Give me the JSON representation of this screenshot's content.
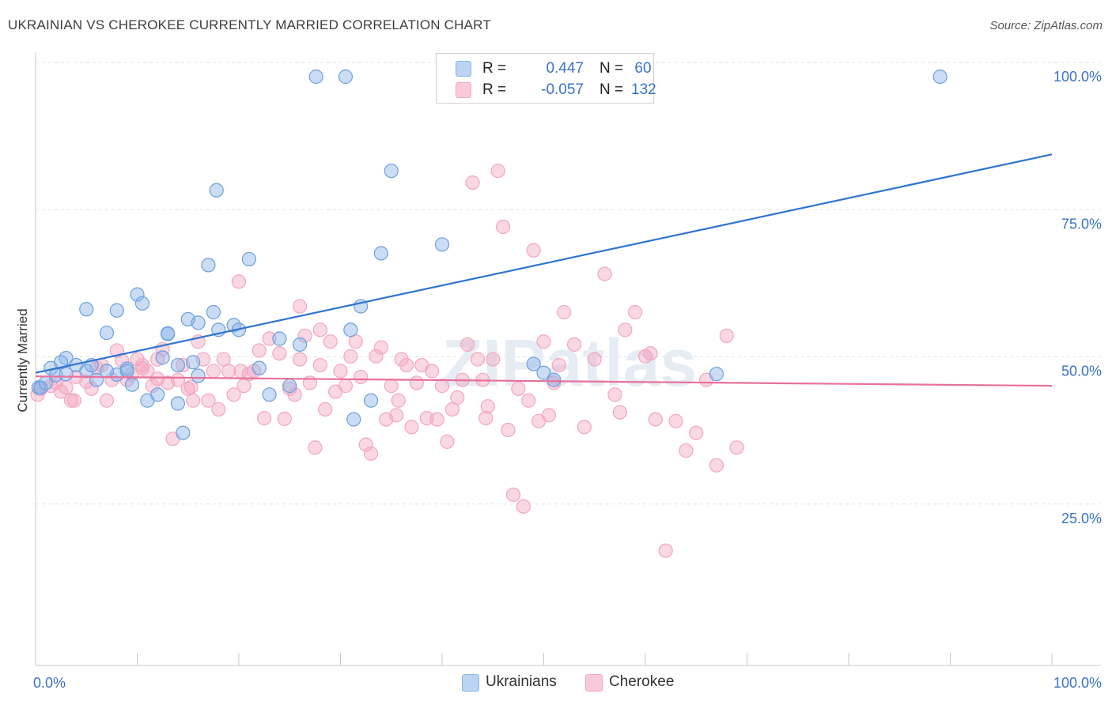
{
  "title": "UKRAINIAN VS CHEROKEE CURRENTLY MARRIED CORRELATION CHART",
  "source": "Source: ZipAtlas.com",
  "watermark": "ZIPatlas",
  "legend": {
    "rows": [
      {
        "r_label": "R =",
        "r_value": "0.447",
        "n_label": "N =",
        "n_value": "60"
      },
      {
        "r_label": "R =",
        "r_value": "-0.057",
        "n_label": "N =",
        "n_value": "132"
      }
    ]
  },
  "bottom_legend": {
    "ukrainians": "Ukrainians",
    "cherokee": "Cherokee"
  },
  "chart_data": {
    "type": "scatter",
    "title": "UKRAINIAN VS CHEROKEE CURRENTLY MARRIED CORRELATION CHART",
    "xlabel": "",
    "ylabel": "Currently Married",
    "x_tick_labels": {
      "left": "0.0%",
      "right": "100.0%"
    },
    "y_tick_labels": [
      "100.0%",
      "75.0%",
      "50.0%",
      "25.0%"
    ],
    "y_ticks": [
      100,
      75,
      50,
      25
    ],
    "xlim": [
      0,
      100
    ],
    "ylim": [
      0,
      100
    ],
    "grid": true,
    "colors": {
      "ukrainians": "#8ab4e8",
      "cherokee": "#f2a7c0",
      "ukr_line": "#2f74d0",
      "cher_line": "#e8709a",
      "tick_text": "#3a72c8"
    },
    "series": [
      {
        "name": "Ukrainians",
        "trend": {
          "x0": 0,
          "y0": 49.7,
          "x1": 100,
          "y1": 86.8
        },
        "points": [
          [
            0.3,
            47.2
          ],
          [
            0.5,
            47.2
          ],
          [
            1.5,
            50.5
          ],
          [
            2,
            49.3
          ],
          [
            3,
            52.2
          ],
          [
            4,
            51
          ],
          [
            5,
            60.5
          ],
          [
            5,
            50
          ],
          [
            7,
            56.5
          ],
          [
            8,
            60.3
          ],
          [
            8,
            49.4
          ],
          [
            9,
            50.4
          ],
          [
            9.5,
            47.7
          ],
          [
            10,
            63
          ],
          [
            10.5,
            61.5
          ],
          [
            11,
            45
          ],
          [
            12,
            46
          ],
          [
            12.5,
            52.3
          ],
          [
            13,
            56.3
          ],
          [
            13,
            56.4
          ],
          [
            14,
            44.5
          ],
          [
            14,
            51
          ],
          [
            14.5,
            39.5
          ],
          [
            15,
            58.8
          ],
          [
            16,
            58.2
          ],
          [
            15.5,
            51.5
          ],
          [
            16,
            49.2
          ],
          [
            17,
            68
          ],
          [
            17.5,
            60
          ],
          [
            17.8,
            80.7
          ],
          [
            18,
            57
          ],
          [
            19.5,
            57.8
          ],
          [
            20,
            57
          ],
          [
            21,
            69
          ],
          [
            22,
            50.5
          ],
          [
            23,
            46
          ],
          [
            24,
            55.5
          ],
          [
            25,
            47.5
          ],
          [
            26,
            54.5
          ],
          [
            27.6,
            100
          ],
          [
            30.5,
            100
          ],
          [
            31,
            57
          ],
          [
            31.3,
            41.8
          ],
          [
            32,
            61
          ],
          [
            33,
            45
          ],
          [
            34,
            70
          ],
          [
            35,
            84
          ],
          [
            40,
            71.5
          ],
          [
            49,
            51.2
          ],
          [
            50,
            49.7
          ],
          [
            51,
            48.5
          ],
          [
            67,
            49.5
          ],
          [
            89,
            100
          ],
          [
            5.5,
            51
          ],
          [
            7,
            50
          ],
          [
            3,
            49.5
          ],
          [
            1,
            48
          ],
          [
            6,
            48.5
          ],
          [
            2.5,
            51.5
          ],
          [
            9,
            50
          ]
        ]
      },
      {
        "name": "Cherokee",
        "trend": {
          "x0": 0,
          "y0": 49.1,
          "x1": 100,
          "y1": 47.5
        },
        "points": [
          [
            0.2,
            46
          ],
          [
            0.5,
            47
          ],
          [
            1.5,
            47.5
          ],
          [
            2,
            48
          ],
          [
            2.5,
            46.5
          ],
          [
            3,
            47.2
          ],
          [
            3.5,
            45
          ],
          [
            4,
            49
          ],
          [
            5,
            48.2
          ],
          [
            5.5,
            47
          ],
          [
            6,
            50.5
          ],
          [
            6.5,
            51
          ],
          [
            7,
            45
          ],
          [
            7.5,
            48.5
          ],
          [
            8,
            53.5
          ],
          [
            8.5,
            51.8
          ],
          [
            9,
            48.5
          ],
          [
            9.5,
            49.5
          ],
          [
            10,
            52
          ],
          [
            10.5,
            51
          ],
          [
            11,
            50
          ],
          [
            11.5,
            47.5
          ],
          [
            12,
            52
          ],
          [
            12.5,
            53.7
          ],
          [
            13,
            48
          ],
          [
            13.5,
            38.5
          ],
          [
            14,
            48.5
          ],
          [
            14.5,
            51
          ],
          [
            15,
            47
          ],
          [
            15.5,
            45
          ],
          [
            16,
            55
          ],
          [
            16.5,
            52
          ],
          [
            17,
            45
          ],
          [
            17.5,
            50
          ],
          [
            18,
            43.5
          ],
          [
            18.5,
            52
          ],
          [
            19,
            50
          ],
          [
            19.5,
            46
          ],
          [
            20,
            65.2
          ],
          [
            20.5,
            47.5
          ],
          [
            21,
            49.5
          ],
          [
            21.5,
            50
          ],
          [
            22,
            53.5
          ],
          [
            22.5,
            42
          ],
          [
            23,
            55.5
          ],
          [
            24,
            53
          ],
          [
            24.5,
            41.9
          ],
          [
            25,
            47
          ],
          [
            25.5,
            46
          ],
          [
            26,
            52
          ],
          [
            26.5,
            56
          ],
          [
            27,
            48
          ],
          [
            27.5,
            37
          ],
          [
            28,
            51
          ],
          [
            28.5,
            43.5
          ],
          [
            29,
            55
          ],
          [
            29.5,
            46.5
          ],
          [
            30,
            50
          ],
          [
            30.5,
            47.5
          ],
          [
            31,
            52.5
          ],
          [
            31.5,
            55
          ],
          [
            32,
            49
          ],
          [
            32.5,
            37.5
          ],
          [
            33,
            36
          ],
          [
            33.5,
            52.5
          ],
          [
            34,
            54
          ],
          [
            34.5,
            41.8
          ],
          [
            35,
            47.5
          ],
          [
            35.5,
            42.5
          ],
          [
            36,
            52
          ],
          [
            36.5,
            51
          ],
          [
            37,
            40.5
          ],
          [
            37.5,
            48
          ],
          [
            38,
            51
          ],
          [
            38.5,
            42
          ],
          [
            39,
            50
          ],
          [
            39.5,
            41.8
          ],
          [
            40,
            47.5
          ],
          [
            40.5,
            38
          ],
          [
            41,
            43.5
          ],
          [
            41.5,
            45.5
          ],
          [
            42,
            48.5
          ],
          [
            42.5,
            54.5
          ],
          [
            43,
            82
          ],
          [
            43.5,
            52
          ],
          [
            44,
            48.5
          ],
          [
            44.5,
            44
          ],
          [
            45,
            52
          ],
          [
            45.5,
            84
          ],
          [
            46,
            74.5
          ],
          [
            46.5,
            40
          ],
          [
            47,
            29
          ],
          [
            47.5,
            47
          ],
          [
            48,
            27
          ],
          [
            48.5,
            45
          ],
          [
            49,
            70.5
          ],
          [
            49.5,
            41.5
          ],
          [
            50,
            55
          ],
          [
            50.5,
            42.5
          ],
          [
            51,
            48
          ],
          [
            51.5,
            51
          ],
          [
            52,
            60
          ],
          [
            53,
            54.5
          ],
          [
            54,
            40.5
          ],
          [
            55,
            52
          ],
          [
            56,
            66.5
          ],
          [
            57,
            46
          ],
          [
            58,
            57
          ],
          [
            59,
            60
          ],
          [
            60,
            52.5
          ],
          [
            61,
            41.8
          ],
          [
            62,
            19.5
          ],
          [
            63,
            41.5
          ],
          [
            64,
            36.5
          ],
          [
            65,
            39.5
          ],
          [
            66,
            48.5
          ],
          [
            67,
            34
          ],
          [
            68,
            56
          ],
          [
            69,
            37
          ],
          [
            35.7,
            45
          ],
          [
            20.2,
            50
          ],
          [
            26,
            61
          ],
          [
            28,
            57
          ],
          [
            10.5,
            50.5
          ],
          [
            12,
            48.7
          ],
          [
            60.5,
            53
          ],
          [
            57.5,
            43
          ],
          [
            15.3,
            47.3
          ],
          [
            3.8,
            45
          ],
          [
            44.3,
            42
          ]
        ]
      }
    ]
  }
}
